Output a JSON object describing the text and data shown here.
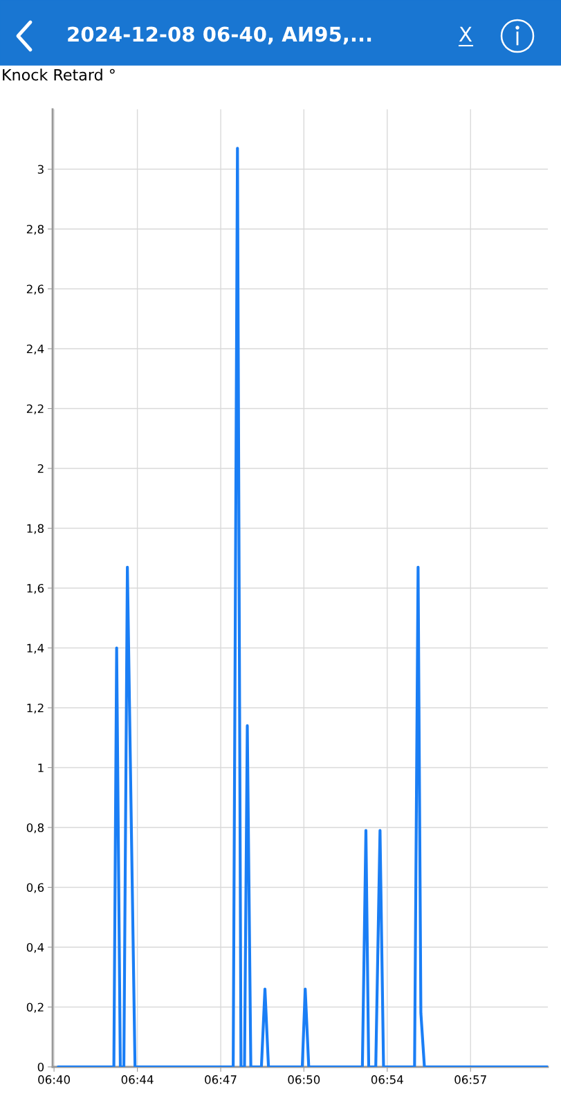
{
  "chart_data": {
    "type": "line",
    "title": "2024-12-08 06-40, АИ95,...",
    "ylabel": "Knock Retard °",
    "annotations": [
      "X"
    ],
    "series": [
      {
        "color": "#1a7ef5",
        "x": [
          6.6736,
          6.7115,
          6.7134,
          6.7159,
          6.7183,
          6.7207,
          6.7259,
          6.7927,
          6.7956,
          6.798,
          6.8004,
          6.8023,
          6.8047,
          6.8119,
          6.8143,
          6.8167,
          6.8397,
          6.8417,
          6.8441,
          6.8806,
          6.883,
          6.8849,
          6.8897,
          6.8926,
          6.895,
          6.9161,
          6.9185,
          6.9204,
          6.9228,
          7.0064
        ],
        "values": [
          0,
          0,
          1.4,
          0,
          0,
          1.67,
          0,
          0,
          3.07,
          0,
          0,
          1.14,
          0,
          0,
          0.26,
          0,
          0,
          0.26,
          0,
          0,
          0.79,
          0,
          0,
          0.79,
          0,
          0,
          1.67,
          0.18,
          0,
          0
        ]
      }
    ],
    "xlim": [
      6.6698,
      7.0068
    ],
    "xticks": [
      {
        "value": 6.6708,
        "label": "06:40"
      },
      {
        "value": 6.7275,
        "label": "06:44"
      },
      {
        "value": 6.7842,
        "label": "06:47"
      },
      {
        "value": 6.8408,
        "label": "06:50"
      },
      {
        "value": 6.8975,
        "label": "06:54"
      },
      {
        "value": 6.9542,
        "label": "06:57"
      }
    ],
    "ylim": [
      0,
      3.2
    ],
    "yticks": [
      {
        "value": 0,
        "label": "0"
      },
      {
        "value": 0.2,
        "label": "0,2"
      },
      {
        "value": 0.4,
        "label": "0,4"
      },
      {
        "value": 0.6,
        "label": "0,6"
      },
      {
        "value": 0.8,
        "label": "0,8"
      },
      {
        "value": 1,
        "label": "1"
      },
      {
        "value": 1.2,
        "label": "1,2"
      },
      {
        "value": 1.4,
        "label": "1,4"
      },
      {
        "value": 1.6,
        "label": "1,6"
      },
      {
        "value": 1.8,
        "label": "1,8"
      },
      {
        "value": 2,
        "label": "2"
      },
      {
        "value": 2.2,
        "label": "2,2"
      },
      {
        "value": 2.4,
        "label": "2,4"
      },
      {
        "value": 2.6,
        "label": "2,6"
      },
      {
        "value": 2.8,
        "label": "2,8"
      },
      {
        "value": 3,
        "label": "3"
      }
    ],
    "grid": true,
    "legend": false,
    "marker": "none",
    "line_style": "solid"
  }
}
